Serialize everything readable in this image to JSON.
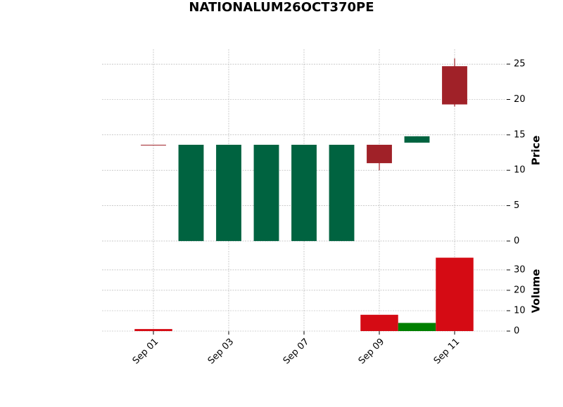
{
  "chart_data": {
    "type": "candlestick",
    "title": "NATIONALUM26OCT370PE",
    "categories": [
      "Sep 01",
      null,
      "Sep 03",
      null,
      "Sep 07",
      null,
      "Sep 09",
      null,
      "Sep 11"
    ],
    "open": [
      13.6,
      0,
      0,
      0,
      0,
      0,
      13.6,
      13.9,
      24.7
    ],
    "high": [
      13.6,
      13.6,
      13.6,
      13.6,
      13.6,
      13.6,
      13.6,
      14.8,
      25.8
    ],
    "low": [
      13.6,
      0,
      0,
      0,
      0,
      0,
      10.0,
      13.9,
      19.0
    ],
    "close": [
      13.6,
      13.6,
      13.6,
      13.6,
      13.6,
      13.6,
      11.0,
      14.8,
      19.3
    ],
    "volume": [
      1,
      0,
      0,
      0,
      0,
      0,
      8,
      4,
      36
    ],
    "up_color": "#006340",
    "down_color": "#a02128",
    "volume_up_color": "#007f00",
    "volume_down_color": "#d50b14",
    "ylabel": "Price",
    "ylim": [
      -1.2,
      27.1
    ],
    "yticks": [
      0,
      5,
      10,
      15,
      20,
      25
    ],
    "volume_label": "Volume",
    "volume_ylim": [
      0,
      39.3
    ],
    "volume_yticks": [
      0,
      10,
      20,
      30
    ],
    "grid": true
  }
}
